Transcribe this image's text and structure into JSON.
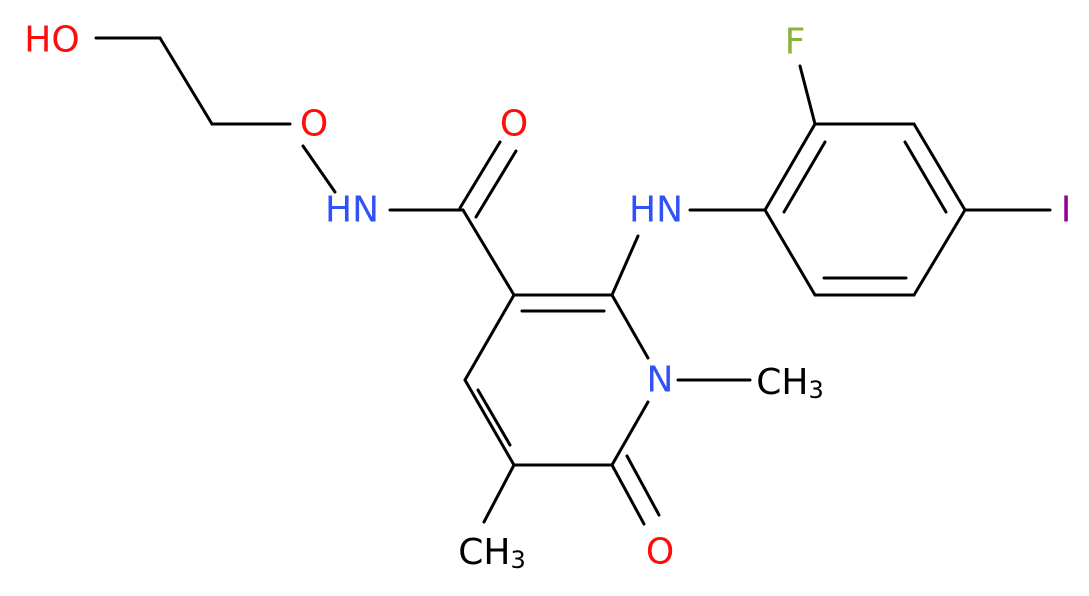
{
  "atoms": [
    {
      "label": "HO"
    },
    {
      "label": "O"
    },
    {
      "label": "HN"
    },
    {
      "label": "O"
    },
    {
      "label": "HN"
    },
    {
      "label": "F"
    },
    {
      "label": "I"
    },
    {
      "label": "N"
    },
    {
      "label": "CH",
      "subscript": "3"
    },
    {
      "label": "O"
    },
    {
      "label": "CH",
      "subscript": "3"
    }
  ]
}
